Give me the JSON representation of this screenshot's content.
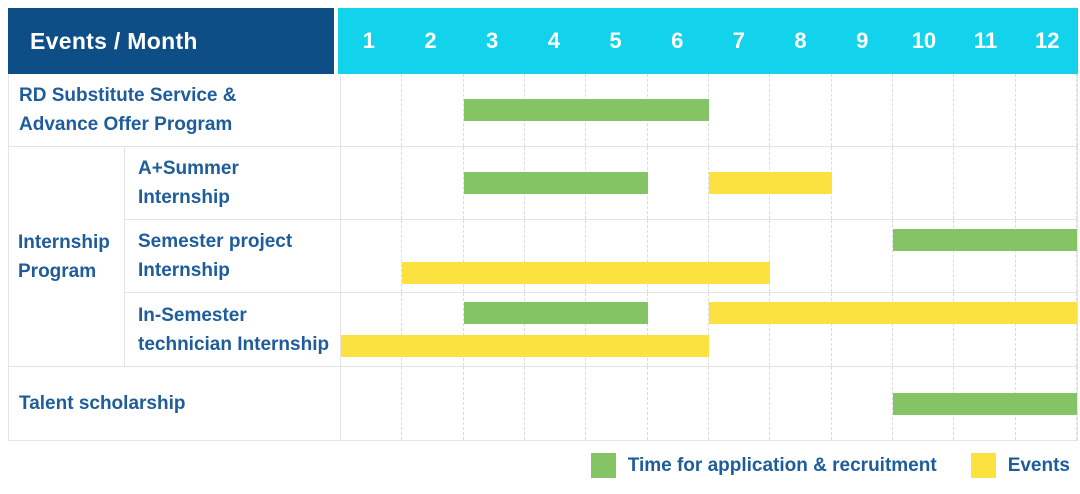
{
  "table": {
    "corner_label": "Events / Month",
    "months": [
      "1",
      "2",
      "3",
      "4",
      "5",
      "6",
      "7",
      "8",
      "9",
      "10",
      "11",
      "12"
    ]
  },
  "colors": {
    "header_bg": "#0D4E87",
    "months_bg": "#12D2EC",
    "text_blue": "#1E5C9B",
    "application_green": "#85C464",
    "event_yellow": "#FCE240",
    "grid_line": "#E4E4E4",
    "column_dash": "#DBDBDB"
  },
  "chart_data": {
    "type": "gantt",
    "title": "Events / Month",
    "x_axis": {
      "unit": "month",
      "ticks": [
        1,
        2,
        3,
        4,
        5,
        6,
        7,
        8,
        9,
        10,
        11,
        12
      ],
      "range": [
        1,
        12
      ]
    },
    "grid": "dashed vertical month separators, solid row separators",
    "legend_position": "bottom-right",
    "legend": [
      {
        "series": "application",
        "label": "Time for application & recruitment",
        "color": "#85C464"
      },
      {
        "series": "event",
        "label": "Events",
        "color": "#FCE240"
      }
    ],
    "groups": [
      {
        "name": "Internship Program",
        "label_lines": [
          "Internship",
          "Program"
        ]
      }
    ],
    "rows": [
      {
        "id": "rd-substitute-service",
        "group": "",
        "label": "RD Substitute Service & Advance Offer Program",
        "label_lines": [
          "RD Substitute Service &",
          "Advance Offer Program"
        ],
        "bars": [
          {
            "series": "application",
            "start_month": 3,
            "end_month": 6,
            "lane": "single"
          }
        ]
      },
      {
        "id": "a-plus-summer-internship",
        "group": "Internship Program",
        "label": "A+Summer Internship",
        "label_lines": [
          "A+Summer",
          "Internship"
        ],
        "bars": [
          {
            "series": "application",
            "start_month": 3,
            "end_month": 5,
            "lane": "single"
          },
          {
            "series": "event",
            "start_month": 7,
            "end_month": 8,
            "lane": "single"
          }
        ]
      },
      {
        "id": "semester-project-internship",
        "group": "Internship Program",
        "label": "Semester project Internship",
        "label_lines": [
          "Semester project",
          "Internship"
        ],
        "bars": [
          {
            "series": "application",
            "start_month": 10,
            "end_month": 12,
            "lane": "top"
          },
          {
            "series": "event",
            "start_month": 2,
            "end_month": 7,
            "lane": "bottom"
          }
        ]
      },
      {
        "id": "in-semester-technician-internship",
        "group": "Internship Program",
        "label": "In-Semester technician Internship",
        "label_lines": [
          "In-Semester",
          "technician Internship"
        ],
        "bars": [
          {
            "series": "application",
            "start_month": 3,
            "end_month": 5,
            "lane": "top"
          },
          {
            "series": "event",
            "start_month": 7,
            "end_month": 12,
            "lane": "top"
          },
          {
            "series": "event",
            "start_month": 1,
            "end_month": 6,
            "lane": "bottom"
          }
        ]
      },
      {
        "id": "talent-scholarship",
        "group": "",
        "label": "Talent scholarship",
        "label_lines": [
          "Talent scholarship"
        ],
        "bars": [
          {
            "series": "application",
            "start_month": 10,
            "end_month": 12,
            "lane": "single"
          }
        ]
      }
    ]
  }
}
